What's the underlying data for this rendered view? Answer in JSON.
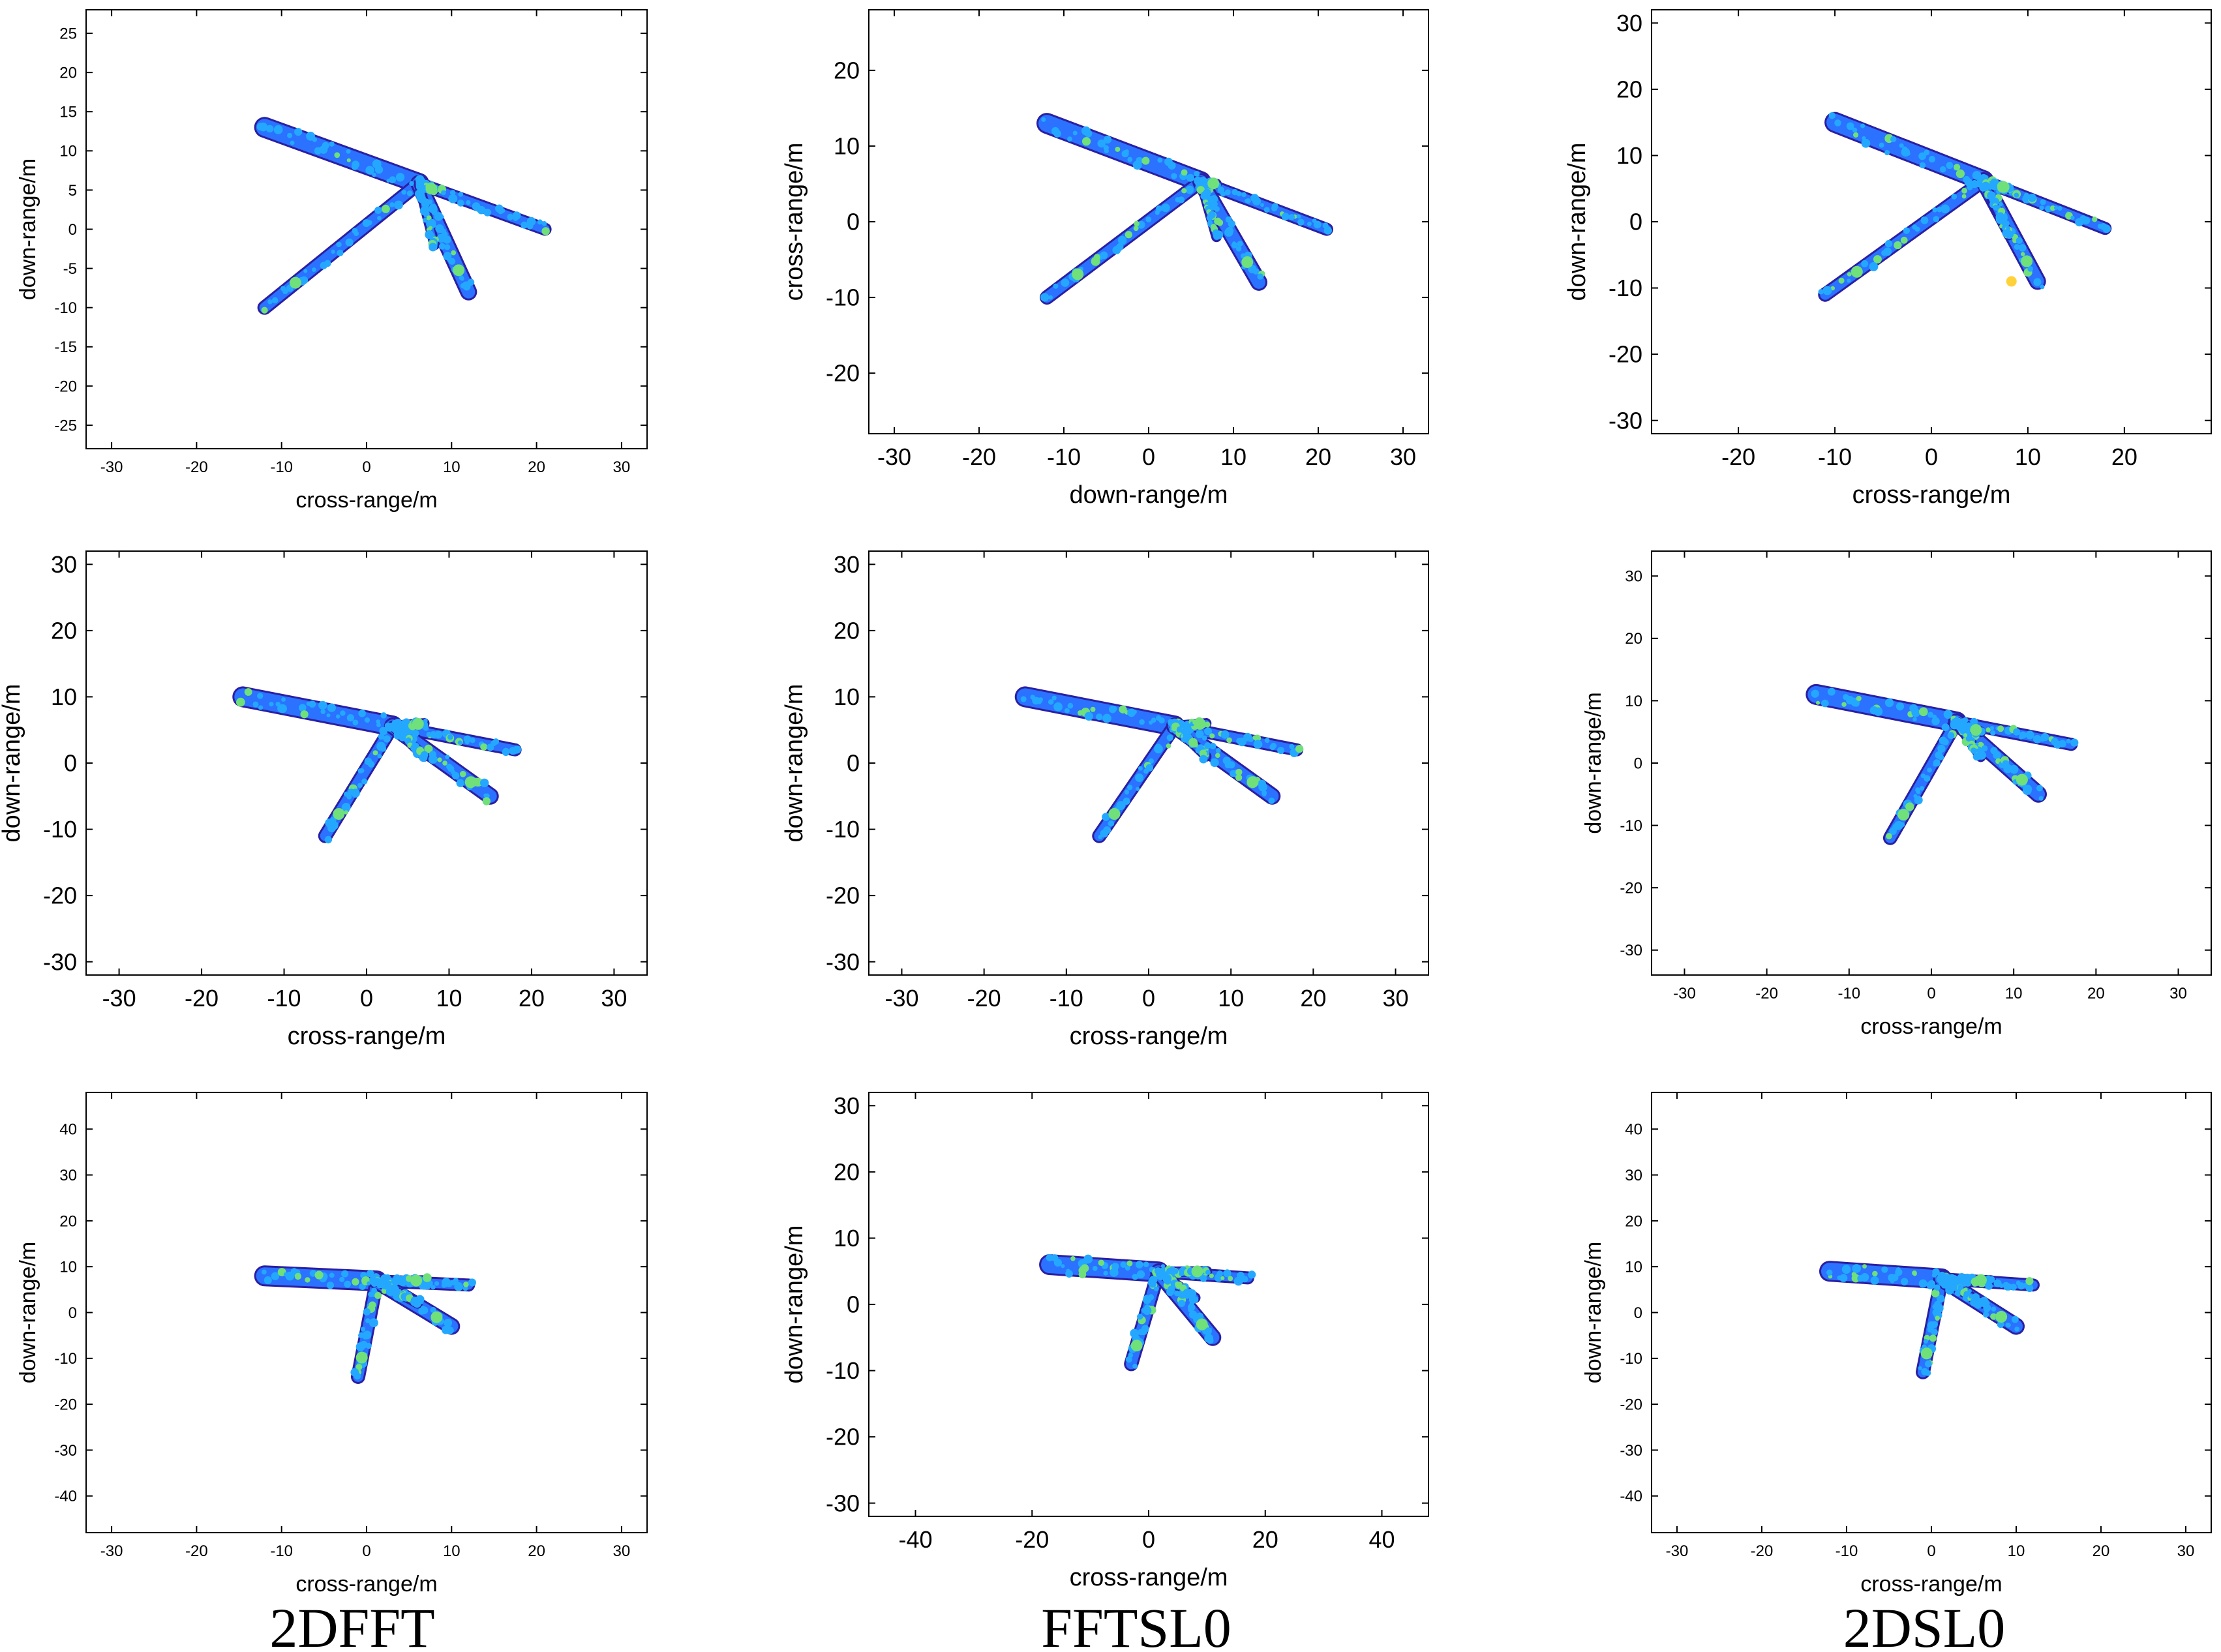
{
  "figure": {
    "column_captions": [
      "2DFFT",
      "FFTSL0",
      "2DSL0"
    ]
  },
  "colors": {
    "outline": "#2b1fa3",
    "fill_base": "#2a72ff",
    "fill_mid": "#24a8ff",
    "fill_hot": "#6fe07a",
    "fill_peak": "#ffd23a"
  },
  "chart_data": [
    {
      "id": "r1c1",
      "type": "heatmap",
      "title": "",
      "xlabel": "cross-range/m",
      "ylabel": "down-range/m",
      "xlim": [
        -33,
        33
      ],
      "ylim": [
        -28,
        28
      ],
      "xticks": [
        -30,
        -20,
        -10,
        0,
        10,
        20,
        30
      ],
      "yticks": [
        -25,
        -20,
        -15,
        -10,
        -5,
        0,
        5,
        10,
        15,
        20,
        25
      ],
      "tick_size": "small",
      "target": {
        "nose": [
          -12,
          13
        ],
        "tail": [
          21,
          0
        ],
        "lwing": [
          -12,
          -10
        ],
        "rwing": [
          12,
          -8
        ],
        "ltail": [
          8,
          5
        ],
        "rtail": [
          8,
          -2
        ]
      }
    },
    {
      "id": "r1c2",
      "type": "heatmap",
      "title": "",
      "xlabel": "down-range/m",
      "ylabel": "cross-range/m",
      "xlim": [
        -33,
        33
      ],
      "ylim": [
        -28,
        28
      ],
      "xticks": [
        -30,
        -20,
        -10,
        0,
        10,
        20,
        30
      ],
      "yticks": [
        -20,
        -10,
        0,
        10,
        20
      ],
      "tick_size": "large",
      "target": {
        "nose": [
          -12,
          13
        ],
        "tail": [
          21,
          -1
        ],
        "lwing": [
          -12,
          -10
        ],
        "rwing": [
          13,
          -8
        ],
        "ltail": [
          8,
          5
        ],
        "rtail": [
          8,
          -2
        ]
      }
    },
    {
      "id": "r1c3",
      "type": "heatmap",
      "title": "",
      "xlabel": "cross-range/m",
      "ylabel": "down-range/m",
      "xlim": [
        -29,
        29
      ],
      "ylim": [
        -32,
        32
      ],
      "xticks": [
        -20,
        -10,
        0,
        10,
        20
      ],
      "yticks": [
        -30,
        -20,
        -10,
        0,
        10,
        20,
        30
      ],
      "tick_size": "large",
      "target": {
        "nose": [
          -10,
          15
        ],
        "tail": [
          18,
          -1
        ],
        "lwing": [
          -11,
          -11
        ],
        "rwing": [
          11,
          -9
        ],
        "ltail": [
          8,
          5
        ],
        "rtail": [
          8,
          -2
        ]
      }
    },
    {
      "id": "r2c1",
      "type": "heatmap",
      "title": "",
      "xlabel": "cross-range/m",
      "ylabel": "down-range/m",
      "xlim": [
        -34,
        34
      ],
      "ylim": [
        -32,
        32
      ],
      "xticks": [
        -30,
        -20,
        -10,
        0,
        10,
        20,
        30
      ],
      "yticks": [
        -30,
        -20,
        -10,
        0,
        10,
        20,
        30
      ],
      "tick_size": "large",
      "target": {
        "nose": [
          -15,
          10
        ],
        "tail": [
          18,
          2
        ],
        "lwing": [
          -5,
          -11
        ],
        "rwing": [
          15,
          -5
        ],
        "ltail": [
          7,
          6
        ],
        "rtail": [
          7,
          1
        ]
      }
    },
    {
      "id": "r2c2",
      "type": "heatmap",
      "title": "",
      "xlabel": "cross-range/m",
      "ylabel": "down-range/m",
      "xlim": [
        -34,
        34
      ],
      "ylim": [
        -32,
        32
      ],
      "xticks": [
        -30,
        -20,
        -10,
        0,
        10,
        20,
        30
      ],
      "yticks": [
        -30,
        -20,
        -10,
        0,
        10,
        20,
        30
      ],
      "tick_size": "large",
      "target": {
        "nose": [
          -15,
          10
        ],
        "tail": [
          18,
          2
        ],
        "lwing": [
          -6,
          -11
        ],
        "rwing": [
          15,
          -5
        ],
        "ltail": [
          7,
          6
        ],
        "rtail": [
          7,
          1
        ]
      }
    },
    {
      "id": "r2c3",
      "type": "heatmap",
      "title": "",
      "xlabel": "cross-range/m",
      "ylabel": "down-range/m",
      "xlim": [
        -34,
        34
      ],
      "ylim": [
        -34,
        34
      ],
      "xticks": [
        -30,
        -20,
        -10,
        0,
        10,
        20,
        30
      ],
      "yticks": [
        -30,
        -20,
        -10,
        0,
        10,
        20,
        30
      ],
      "tick_size": "small",
      "target": {
        "nose": [
          -14,
          11
        ],
        "tail": [
          17,
          3
        ],
        "lwing": [
          -5,
          -12
        ],
        "rwing": [
          13,
          -5
        ],
        "ltail": [
          6,
          5
        ],
        "rtail": [
          6,
          1
        ]
      }
    },
    {
      "id": "r3c1",
      "type": "heatmap",
      "title": "",
      "xlabel": "cross-range/m",
      "ylabel": "down-range/m",
      "xlim": [
        -33,
        33
      ],
      "ylim": [
        -48,
        48
      ],
      "xticks": [
        -30,
        -20,
        -10,
        0,
        10,
        20,
        30
      ],
      "yticks": [
        -40,
        -30,
        -20,
        -10,
        0,
        10,
        20,
        30,
        40
      ],
      "tick_size": "small",
      "target": {
        "nose": [
          -12,
          8
        ],
        "tail": [
          12,
          6
        ],
        "lwing": [
          -1,
          -14
        ],
        "rwing": [
          10,
          -3
        ],
        "ltail": [
          7,
          7
        ],
        "rtail": [
          6,
          2
        ]
      }
    },
    {
      "id": "r3c2",
      "type": "heatmap",
      "title": "",
      "xlabel": "cross-range/m",
      "ylabel": "down-range/m",
      "xlim": [
        -48,
        48
      ],
      "ylim": [
        -32,
        32
      ],
      "xticks": [
        -40,
        -20,
        0,
        20,
        40
      ],
      "yticks": [
        -30,
        -20,
        -10,
        0,
        10,
        20,
        30
      ],
      "tick_size": "large",
      "target": {
        "nose": [
          -17,
          6
        ],
        "tail": [
          17,
          4
        ],
        "lwing": [
          -3,
          -9
        ],
        "rwing": [
          11,
          -5
        ],
        "ltail": [
          10,
          5
        ],
        "rtail": [
          8,
          1
        ]
      }
    },
    {
      "id": "r3c3",
      "type": "heatmap",
      "title": "",
      "xlabel": "cross-range/m",
      "ylabel": "down-range/m",
      "xlim": [
        -33,
        33
      ],
      "ylim": [
        -48,
        48
      ],
      "xticks": [
        -30,
        -20,
        -10,
        0,
        10,
        20,
        30
      ],
      "yticks": [
        -40,
        -30,
        -20,
        -10,
        0,
        10,
        20,
        30,
        40
      ],
      "tick_size": "small",
      "target": {
        "nose": [
          -12,
          9
        ],
        "tail": [
          12,
          6
        ],
        "lwing": [
          -1,
          -13
        ],
        "rwing": [
          10,
          -3
        ],
        "ltail": [
          7,
          7
        ],
        "rtail": [
          6,
          2
        ]
      }
    }
  ]
}
